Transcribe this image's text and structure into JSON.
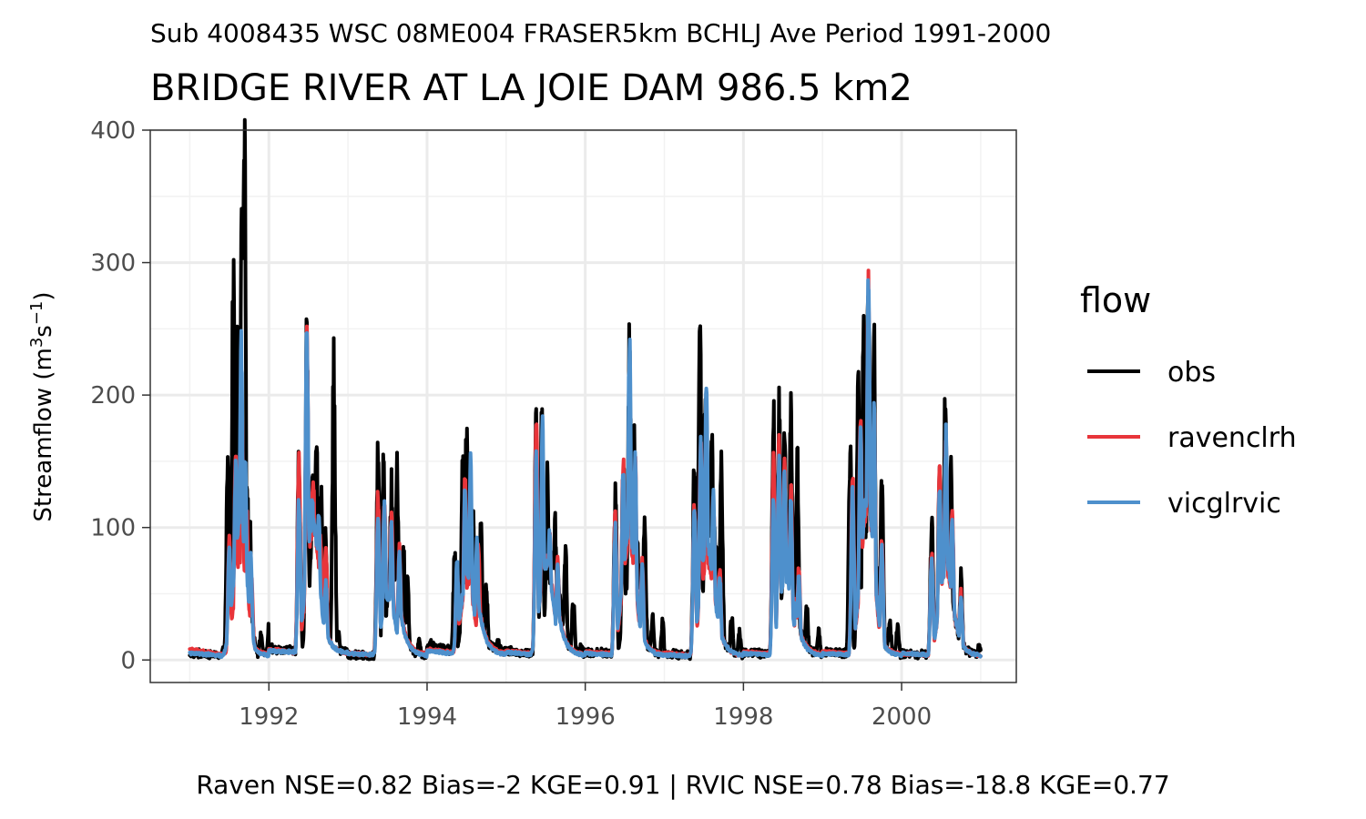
{
  "chart_data": {
    "type": "line",
    "subtitle_top": "Sub 4008435 WSC 08ME004 FRASER5km BCHLJ Ave Period 1991-2000",
    "title": "BRIDGE RIVER AT LA JOIE DAM 986.5 km2",
    "ylabel_main": "Streamflow (m",
    "ylabel_sup1": "3",
    "ylabel_mid": "s",
    "ylabel_sup2": "−1",
    "ylabel_end": ")",
    "xlabel": "",
    "x_ticks": [
      "1992",
      "1994",
      "1996",
      "1998",
      "2000"
    ],
    "y_ticks": [
      "0",
      "100",
      "200",
      "300",
      "400"
    ],
    "xlim": [
      1990.5,
      2001.45
    ],
    "ylim": [
      -17,
      400
    ],
    "grid": true,
    "legend": {
      "title": "flow",
      "placement": "right",
      "entries": [
        "obs",
        "ravenclrh",
        "vicglrvic"
      ]
    },
    "caption": "Raven NSE=0.82 Bias=-2 KGE=0.91 | RVIC NSE=0.78 Bias=-18.8 KGE=0.77",
    "series": [
      {
        "name": "obs",
        "color": "#000000",
        "years": [
          {
            "base": [
              5,
              4,
              3
            ],
            "peaks": [
              [
                1991.48,
                140
              ],
              [
                1991.55,
                280
              ],
              [
                1991.6,
                225
              ],
              [
                1991.66,
                335
              ],
              [
                1991.69,
                383
              ],
              [
                1991.72,
                150
              ],
              [
                1991.76,
                95
              ]
            ],
            "late": [
              [
                1991.9,
                20
              ],
              [
                1992.0,
                24
              ]
            ]
          },
          {
            "base": [
              8,
              7,
              6
            ],
            "peaks": [
              [
                1992.38,
                150
              ],
              [
                1992.48,
                250
              ],
              [
                1992.55,
                140
              ],
              [
                1992.6,
                175
              ],
              [
                1992.66,
                120
              ],
              [
                1992.72,
                95
              ],
              [
                1992.82,
                214
              ]
            ],
            "late": [
              [
                1992.88,
                20
              ]
            ]
          },
          {
            "base": [
              4,
              3,
              3
            ],
            "peaks": [
              [
                1993.38,
                163
              ],
              [
                1993.45,
                150
              ],
              [
                1993.55,
                135
              ],
              [
                1993.62,
                140
              ],
              [
                1993.7,
                85
              ],
              [
                1993.75,
                60
              ]
            ],
            "late": [
              [
                1993.9,
                15
              ]
            ]
          },
          {
            "base": [
              12,
              8,
              6
            ],
            "peaks": [
              [
                1994.35,
                80
              ],
              [
                1994.45,
                140
              ],
              [
                1994.5,
                180
              ],
              [
                1994.58,
                110
              ],
              [
                1994.68,
                95
              ],
              [
                1994.75,
                55
              ]
            ],
            "late": [
              [
                1994.9,
                15
              ]
            ]
          },
          {
            "base": [
              7,
              5,
              4
            ],
            "peaks": [
              [
                1995.38,
                178
              ],
              [
                1995.45,
                180
              ],
              [
                1995.52,
                130
              ],
              [
                1995.62,
                100
              ],
              [
                1995.75,
                80
              ],
              [
                1995.85,
                45
              ]
            ],
            "late": [
              [
                1995.95,
                12
              ]
            ]
          },
          {
            "base": [
              6,
              5,
              4
            ],
            "peaks": [
              [
                1996.38,
                120
              ],
              [
                1996.48,
                150
              ],
              [
                1996.56,
                235
              ],
              [
                1996.62,
                160
              ],
              [
                1996.75,
                105
              ],
              [
                1996.85,
                30
              ]
            ],
            "late": [
              [
                1996.98,
                30
              ]
            ]
          },
          {
            "base": [
              5,
              4,
              3
            ],
            "peaks": [
              [
                1997.38,
                150
              ],
              [
                1997.45,
                248
              ],
              [
                1997.52,
                200
              ],
              [
                1997.6,
                160
              ],
              [
                1997.72,
                140
              ],
              [
                1997.85,
                30
              ]
            ],
            "late": [
              [
                1997.95,
                20
              ]
            ]
          },
          {
            "base": [
              6,
              5,
              4
            ],
            "peaks": [
              [
                1998.38,
                180
              ],
              [
                1998.45,
                185
              ],
              [
                1998.52,
                165
              ],
              [
                1998.6,
                185
              ],
              [
                1998.68,
                150
              ],
              [
                1998.8,
                40
              ]
            ],
            "late": [
              [
                1998.95,
                20
              ]
            ]
          },
          {
            "base": [
              6,
              5,
              4
            ],
            "peaks": [
              [
                1999.35,
                160
              ],
              [
                1999.45,
                200
              ],
              [
                1999.52,
                240
              ],
              [
                1999.58,
                290
              ],
              [
                1999.65,
                240
              ],
              [
                1999.75,
                130
              ],
              [
                1999.85,
                30
              ]
            ],
            "late": [
              [
                1999.95,
                25
              ]
            ]
          },
          {
            "base": [
              5,
              4,
              3
            ],
            "peaks": [
              [
                2000.38,
                100
              ],
              [
                2000.48,
                140
              ],
              [
                2000.55,
                190
              ],
              [
                2000.62,
                150
              ],
              [
                2000.75,
                60
              ]
            ],
            "late": [
              [
                2000.98,
                10
              ]
            ]
          }
        ]
      },
      {
        "name": "ravenclrh",
        "color": "#e8353a",
        "years": [
          {
            "base": [
              8,
              5,
              4
            ],
            "peaks": [
              [
                1991.5,
                90
              ],
              [
                1991.58,
                160
              ],
              [
                1991.66,
                190
              ],
              [
                1991.72,
                110
              ],
              [
                1991.78,
                60
              ]
            ],
            "late": []
          },
          {
            "base": [
              8,
              6,
              5
            ],
            "peaks": [
              [
                1992.38,
                150
              ],
              [
                1992.48,
                240
              ],
              [
                1992.56,
                140
              ],
              [
                1992.65,
                95
              ],
              [
                1992.72,
                85
              ]
            ],
            "late": []
          },
          {
            "base": [
              5,
              4,
              4
            ],
            "peaks": [
              [
                1993.38,
                125
              ],
              [
                1993.46,
                120
              ],
              [
                1993.55,
                110
              ],
              [
                1993.65,
                85
              ]
            ],
            "late": []
          },
          {
            "base": [
              8,
              6,
              5
            ],
            "peaks": [
              [
                1994.38,
                70
              ],
              [
                1994.48,
                140
              ],
              [
                1994.55,
                120
              ],
              [
                1994.65,
                85
              ]
            ],
            "late": []
          },
          {
            "base": [
              7,
              5,
              4
            ],
            "peaks": [
              [
                1995.38,
                180
              ],
              [
                1995.46,
                140
              ],
              [
                1995.55,
                95
              ],
              [
                1995.65,
                75
              ]
            ],
            "late": []
          },
          {
            "base": [
              6,
              5,
              4
            ],
            "peaks": [
              [
                1996.38,
                110
              ],
              [
                1996.48,
                150
              ],
              [
                1996.56,
                210
              ],
              [
                1996.63,
                150
              ],
              [
                1996.72,
                75
              ]
            ],
            "late": []
          },
          {
            "base": [
              5,
              4,
              3
            ],
            "peaks": [
              [
                1997.38,
                120
              ],
              [
                1997.46,
                170
              ],
              [
                1997.53,
                180
              ],
              [
                1997.62,
                120
              ],
              [
                1997.7,
                70
              ]
            ],
            "late": []
          },
          {
            "base": [
              6,
              5,
              4
            ],
            "peaks": [
              [
                1998.38,
                150
              ],
              [
                1998.45,
                160
              ],
              [
                1998.52,
                150
              ],
              [
                1998.6,
                130
              ],
              [
                1998.7,
                70
              ]
            ],
            "late": []
          },
          {
            "base": [
              6,
              5,
              4
            ],
            "peaks": [
              [
                1999.38,
                140
              ],
              [
                1999.48,
                185
              ],
              [
                1999.58,
                280
              ],
              [
                1999.65,
                190
              ],
              [
                1999.75,
                90
              ]
            ],
            "late": []
          },
          {
            "base": [
              5,
              4,
              3
            ],
            "peaks": [
              [
                2000.38,
                80
              ],
              [
                2000.48,
                140
              ],
              [
                2000.56,
                165
              ],
              [
                2000.64,
                110
              ],
              [
                2000.75,
                50
              ]
            ],
            "late": []
          }
        ]
      },
      {
        "name": "vicglrvic",
        "color": "#4e90cc",
        "years": [
          {
            "base": [
              5,
              4,
              3
            ],
            "peaks": [
              [
                1991.5,
                85
              ],
              [
                1991.58,
                145
              ],
              [
                1991.65,
                240
              ],
              [
                1991.7,
                150
              ],
              [
                1991.77,
                80
              ]
            ],
            "late": []
          },
          {
            "base": [
              7,
              6,
              5
            ],
            "peaks": [
              [
                1992.38,
                120
              ],
              [
                1992.48,
                252
              ],
              [
                1992.55,
                120
              ],
              [
                1992.63,
                110
              ],
              [
                1992.72,
                60
              ]
            ],
            "late": []
          },
          {
            "base": [
              5,
              4,
              3
            ],
            "peaks": [
              [
                1993.38,
                110
              ],
              [
                1993.46,
                115
              ],
              [
                1993.55,
                100
              ],
              [
                1993.65,
                80
              ]
            ],
            "late": []
          },
          {
            "base": [
              7,
              5,
              4
            ],
            "peaks": [
              [
                1994.38,
                75
              ],
              [
                1994.48,
                130
              ],
              [
                1994.55,
                150
              ],
              [
                1994.63,
                90
              ]
            ],
            "late": []
          },
          {
            "base": [
              6,
              4,
              3
            ],
            "peaks": [
              [
                1995.38,
                150
              ],
              [
                1995.46,
                175
              ],
              [
                1995.55,
                100
              ],
              [
                1995.65,
                70
              ]
            ],
            "late": []
          },
          {
            "base": [
              5,
              4,
              3
            ],
            "peaks": [
              [
                1996.38,
                100
              ],
              [
                1996.48,
                140
              ],
              [
                1996.56,
                238
              ],
              [
                1996.63,
                150
              ],
              [
                1996.72,
                70
              ]
            ],
            "late": []
          },
          {
            "base": [
              4,
              3,
              3
            ],
            "peaks": [
              [
                1997.38,
                115
              ],
              [
                1997.46,
                160
              ],
              [
                1997.53,
                208
              ],
              [
                1997.62,
                130
              ],
              [
                1997.7,
                65
              ]
            ],
            "late": []
          },
          {
            "base": [
              5,
              4,
              3
            ],
            "peaks": [
              [
                1998.38,
                120
              ],
              [
                1998.45,
                150
              ],
              [
                1998.52,
                140
              ],
              [
                1998.6,
                120
              ],
              [
                1998.7,
                65
              ]
            ],
            "late": []
          },
          {
            "base": [
              5,
              4,
              3
            ],
            "peaks": [
              [
                1999.38,
                130
              ],
              [
                1999.48,
                175
              ],
              [
                1999.58,
                295
              ],
              [
                1999.65,
                185
              ],
              [
                1999.75,
                85
              ]
            ],
            "late": []
          },
          {
            "base": [
              5,
              4,
              3
            ],
            "peaks": [
              [
                2000.38,
                75
              ],
              [
                2000.48,
                130
              ],
              [
                2000.56,
                170
              ],
              [
                2000.64,
                105
              ],
              [
                2000.75,
                45
              ]
            ],
            "late": []
          }
        ]
      }
    ]
  }
}
